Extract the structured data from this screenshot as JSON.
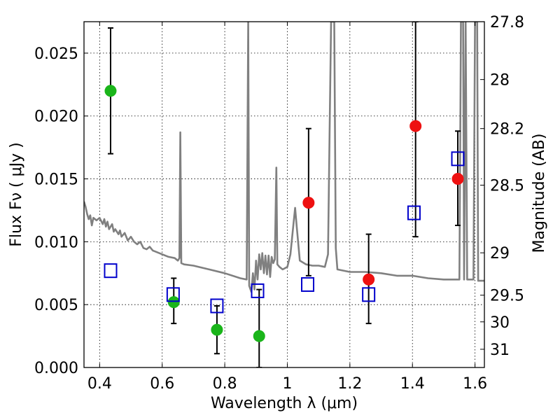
{
  "chart_data": {
    "type": "scatter",
    "xlabel": "Wavelength  λ (μm)",
    "ylabel": "Flux  Fν  ( μJy )",
    "y2label": "Magnitude (AB)",
    "xlim": [
      0.35,
      1.63
    ],
    "ylim": [
      0.0,
      0.0275
    ],
    "grid": true,
    "xticks": [
      {
        "v": 0.4,
        "label": "0.4"
      },
      {
        "v": 0.6,
        "label": "0.6"
      },
      {
        "v": 0.8,
        "label": "0.8"
      },
      {
        "v": 1.0,
        "label": "1"
      },
      {
        "v": 1.2,
        "label": "1.2"
      },
      {
        "v": 1.4,
        "label": "1.4"
      },
      {
        "v": 1.6,
        "label": "1.6"
      }
    ],
    "yticks": [
      {
        "v": 0.0,
        "label": "0.000"
      },
      {
        "v": 0.005,
        "label": "0.005"
      },
      {
        "v": 0.01,
        "label": "0.010"
      },
      {
        "v": 0.015,
        "label": "0.015"
      },
      {
        "v": 0.02,
        "label": "0.020"
      },
      {
        "v": 0.025,
        "label": "0.025"
      }
    ],
    "y2ticks": [
      {
        "label": "27.8",
        "flux": 0.0275
      },
      {
        "label": "28",
        "flux": 0.0229
      },
      {
        "label": "28.2",
        "flux": 0.019
      },
      {
        "label": "28.5",
        "flux": 0.0145
      },
      {
        "label": "29",
        "flux": 0.00912
      },
      {
        "label": "29.5",
        "flux": 0.00575
      },
      {
        "label": "30",
        "flux": 0.00363
      },
      {
        "label": "31",
        "flux": 0.00145
      }
    ],
    "series": [
      {
        "kind": "line",
        "color": "#808080",
        "points": [
          [
            0.35,
            0.0132
          ],
          [
            0.355,
            0.0128
          ],
          [
            0.36,
            0.0122
          ],
          [
            0.365,
            0.0118
          ],
          [
            0.37,
            0.0121
          ],
          [
            0.375,
            0.0113
          ],
          [
            0.38,
            0.0119
          ],
          [
            0.39,
            0.0117
          ],
          [
            0.4,
            0.0119
          ],
          [
            0.41,
            0.0114
          ],
          [
            0.415,
            0.0118
          ],
          [
            0.42,
            0.0112
          ],
          [
            0.425,
            0.0116
          ],
          [
            0.43,
            0.011
          ],
          [
            0.44,
            0.0114
          ],
          [
            0.445,
            0.0108
          ],
          [
            0.45,
            0.011
          ],
          [
            0.46,
            0.0106
          ],
          [
            0.465,
            0.0109
          ],
          [
            0.47,
            0.0104
          ],
          [
            0.48,
            0.0107
          ],
          [
            0.49,
            0.0101
          ],
          [
            0.5,
            0.0104
          ],
          [
            0.51,
            0.01
          ],
          [
            0.52,
            0.0098
          ],
          [
            0.53,
            0.01
          ],
          [
            0.54,
            0.0095
          ],
          [
            0.55,
            0.0094
          ],
          [
            0.56,
            0.0096
          ],
          [
            0.57,
            0.0093
          ],
          [
            0.58,
            0.0092
          ],
          [
            0.6,
            0.009
          ],
          [
            0.62,
            0.0088
          ],
          [
            0.64,
            0.0087
          ],
          [
            0.65,
            0.0085
          ],
          [
            0.655,
            0.0087
          ],
          [
            0.658,
            0.0187
          ],
          [
            0.661,
            0.0083
          ],
          [
            0.67,
            0.0082
          ],
          [
            0.7,
            0.0081
          ],
          [
            0.75,
            0.0078
          ],
          [
            0.8,
            0.0075
          ],
          [
            0.85,
            0.0071
          ],
          [
            0.87,
            0.007
          ],
          [
            0.875,
            0.0275
          ],
          [
            0.878,
            0.0065
          ],
          [
            0.885,
            0.006
          ],
          [
            0.89,
            0.0075
          ],
          [
            0.895,
            0.0062
          ],
          [
            0.9,
            0.0085
          ],
          [
            0.905,
            0.007
          ],
          [
            0.91,
            0.009
          ],
          [
            0.915,
            0.0078
          ],
          [
            0.92,
            0.0091
          ],
          [
            0.925,
            0.0075
          ],
          [
            0.93,
            0.0089
          ],
          [
            0.935,
            0.0074
          ],
          [
            0.94,
            0.0089
          ],
          [
            0.945,
            0.0072
          ],
          [
            0.95,
            0.0088
          ],
          [
            0.955,
            0.0083
          ],
          [
            0.96,
            0.0086
          ],
          [
            0.965,
            0.0159
          ],
          [
            0.968,
            0.0082
          ],
          [
            0.975,
            0.008
          ],
          [
            0.985,
            0.0078
          ],
          [
            1.0,
            0.008
          ],
          [
            1.01,
            0.009
          ],
          [
            1.02,
            0.0115
          ],
          [
            1.025,
            0.0127
          ],
          [
            1.03,
            0.0112
          ],
          [
            1.04,
            0.0085
          ],
          [
            1.06,
            0.0082
          ],
          [
            1.08,
            0.0081
          ],
          [
            1.1,
            0.0081
          ],
          [
            1.12,
            0.008
          ],
          [
            1.13,
            0.009
          ],
          [
            1.135,
            0.0185
          ],
          [
            1.14,
            0.0275
          ],
          [
            1.15,
            0.0275
          ],
          [
            1.155,
            0.0095
          ],
          [
            1.16,
            0.0078
          ],
          [
            1.2,
            0.0076
          ],
          [
            1.25,
            0.0076
          ],
          [
            1.3,
            0.0075
          ],
          [
            1.35,
            0.0073
          ],
          [
            1.4,
            0.0073
          ],
          [
            1.45,
            0.0071
          ],
          [
            1.5,
            0.007
          ],
          [
            1.55,
            0.007
          ],
          [
            1.555,
            0.0275
          ],
          [
            1.562,
            0.0275
          ],
          [
            1.565,
            0.007
          ],
          [
            1.57,
            0.0275
          ],
          [
            1.575,
            0.007
          ],
          [
            1.58,
            0.007
          ],
          [
            1.595,
            0.007
          ],
          [
            1.6,
            0.0275
          ],
          [
            1.607,
            0.0275
          ],
          [
            1.61,
            0.0069
          ],
          [
            1.63,
            0.0069
          ]
        ]
      },
      {
        "kind": "scatter",
        "marker": "circle",
        "color": "#1ab51a",
        "points": [
          {
            "x": 0.435,
            "y": 0.022,
            "ylo": 0.017,
            "yhi": 0.027
          },
          {
            "x": 0.637,
            "y": 0.0052,
            "ylo": 0.0035,
            "yhi": 0.0071
          },
          {
            "x": 0.775,
            "y": 0.003,
            "ylo": 0.0011,
            "yhi": 0.0049
          },
          {
            "x": 0.91,
            "y": 0.0025,
            "ylo": 0.0,
            "yhi": 0.0062
          }
        ]
      },
      {
        "kind": "scatter",
        "marker": "circle",
        "color": "#ee1111",
        "points": [
          {
            "x": 1.068,
            "y": 0.0131,
            "ylo": 0.0073,
            "yhi": 0.019
          },
          {
            "x": 1.26,
            "y": 0.007,
            "ylo": 0.0035,
            "yhi": 0.0106
          },
          {
            "x": 1.41,
            "y": 0.0192,
            "ylo": 0.0104,
            "yhi": 0.0275
          },
          {
            "x": 1.545,
            "y": 0.015,
            "ylo": 0.0113,
            "yhi": 0.0188
          }
        ]
      },
      {
        "kind": "scatter",
        "marker": "open-square",
        "color": "#0000cc",
        "points": [
          {
            "x": 0.435,
            "y": 0.0077
          },
          {
            "x": 0.635,
            "y": 0.0058
          },
          {
            "x": 0.775,
            "y": 0.0049
          },
          {
            "x": 0.905,
            "y": 0.0061
          },
          {
            "x": 1.065,
            "y": 0.0066
          },
          {
            "x": 1.26,
            "y": 0.0058
          },
          {
            "x": 1.405,
            "y": 0.0123
          },
          {
            "x": 1.545,
            "y": 0.0166
          }
        ]
      }
    ]
  }
}
